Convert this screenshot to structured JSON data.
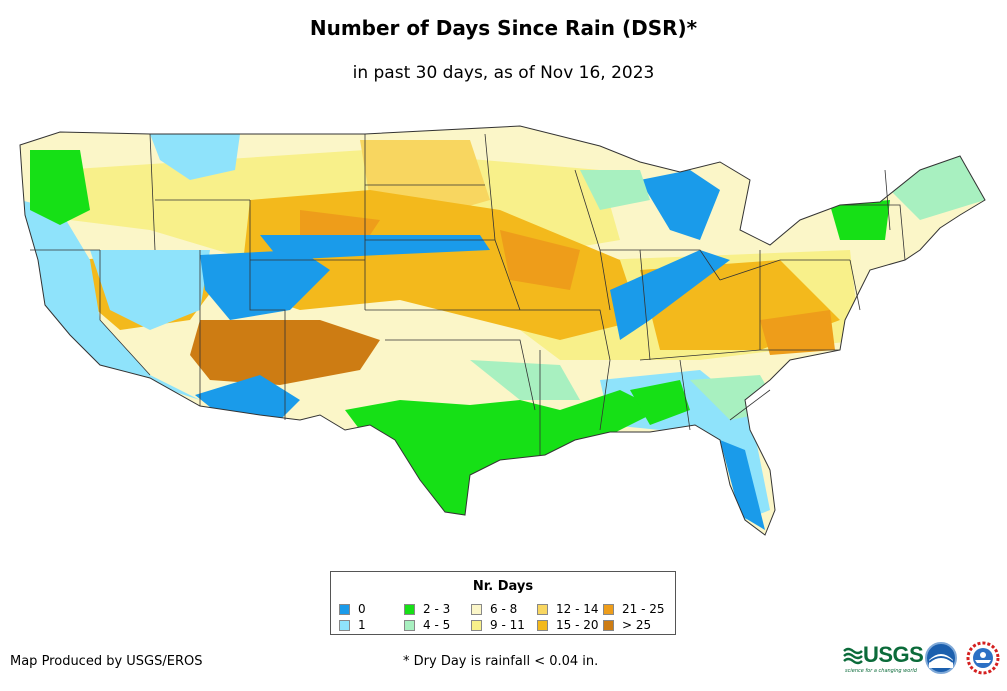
{
  "title": "Number of Days Since Rain (DSR)*",
  "subtitle": "in past 30 days, as of Nov 16, 2023",
  "legend": {
    "title": "Nr. Days",
    "items": [
      {
        "label": "0",
        "color": "#1a9bea"
      },
      {
        "label": "1",
        "color": "#8fe3fb"
      },
      {
        "label": "2 - 3",
        "color": "#16e016"
      },
      {
        "label": "4 - 5",
        "color": "#a8f0c0"
      },
      {
        "label": "6 - 8",
        "color": "#fbf6c8"
      },
      {
        "label": "9 - 11",
        "color": "#f8f08a"
      },
      {
        "label": "12 - 14",
        "color": "#f8d660"
      },
      {
        "label": "15 - 20",
        "color": "#f3b91c"
      },
      {
        "label": "21 - 25",
        "color": "#ee9d1a"
      },
      {
        "label": "> 25",
        "color": "#cd7c13"
      }
    ]
  },
  "footer": {
    "producer": "Map Produced by USGS/EROS",
    "note": "* Dry Day is rainfall < 0.04 in."
  },
  "logos": {
    "usgs": "USGS",
    "usgs_tagline": "science for a changing world"
  }
}
